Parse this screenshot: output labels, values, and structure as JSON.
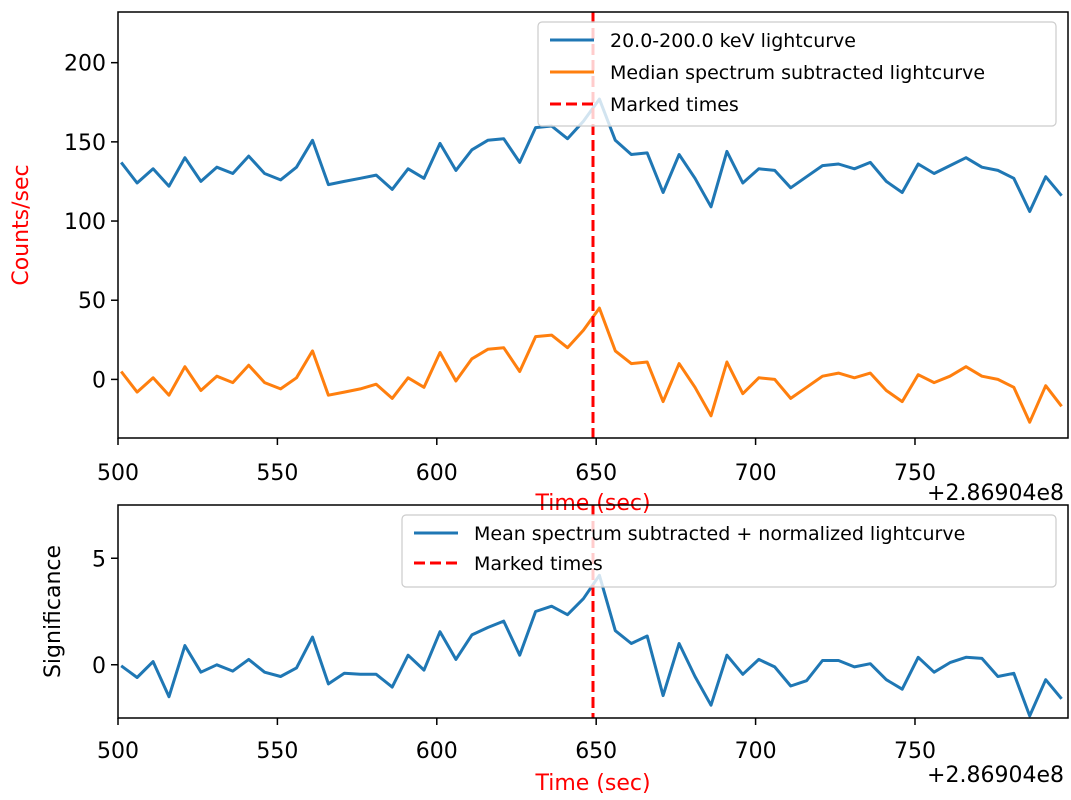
{
  "chart_data": [
    {
      "type": "line",
      "ylabel": "Counts/sec",
      "xlabel": "Time (sec)",
      "label_color": "#ff0000",
      "offset_label": "+2.86904e8",
      "xlim": [
        500,
        798
      ],
      "ylim": [
        -37,
        232
      ],
      "xticks": [
        500,
        550,
        600,
        650,
        700,
        750
      ],
      "yticks": [
        0,
        50,
        100,
        150,
        200
      ],
      "legend_position": "top-right",
      "marked_time": 649,
      "marked_label": "Marked times",
      "marked_color": "#ff0000",
      "x": [
        501,
        506,
        511,
        516,
        521,
        526,
        531,
        536,
        541,
        546,
        551,
        556,
        561,
        566,
        571,
        576,
        581,
        586,
        591,
        596,
        601,
        606,
        611,
        616,
        621,
        626,
        631,
        636,
        641,
        646,
        651,
        656,
        661,
        666,
        671,
        676,
        681,
        686,
        691,
        696,
        701,
        706,
        711,
        716,
        721,
        726,
        731,
        736,
        741,
        746,
        751,
        756,
        761,
        766,
        771,
        776,
        781,
        786,
        791,
        796
      ],
      "series": [
        {
          "name": "20.0-200.0 keV lightcurve",
          "color": "#1f77b4",
          "values": [
            137,
            124,
            133,
            122,
            140,
            125,
            134,
            130,
            141,
            130,
            126,
            134,
            151,
            123,
            125,
            127,
            129,
            120,
            133,
            127,
            149,
            132,
            145,
            151,
            152,
            137,
            159,
            160,
            152,
            163,
            177,
            151,
            142,
            143,
            118,
            142,
            127,
            109,
            144,
            124,
            133,
            132,
            121,
            128,
            135,
            136,
            133,
            137,
            125,
            118,
            136,
            130,
            135,
            140,
            134,
            132,
            127,
            106,
            128,
            116
          ]
        },
        {
          "name": "Median spectrum subtracted lightcurve",
          "color": "#ff7f0e",
          "values": [
            5,
            -8,
            1,
            -10,
            8,
            -7,
            2,
            -2,
            9,
            -2,
            -6,
            1,
            18,
            -10,
            -8,
            -6,
            -3,
            -12,
            1,
            -5,
            17,
            -1,
            13,
            19,
            20,
            5,
            27,
            28,
            20,
            31,
            45,
            18,
            10,
            11,
            -14,
            10,
            -5,
            -23,
            11,
            -9,
            1,
            0,
            -12,
            -5,
            2,
            4,
            1,
            4,
            -7,
            -14,
            3,
            -2,
            2,
            8,
            2,
            0,
            -5,
            -27,
            -4,
            -17
          ]
        }
      ]
    },
    {
      "type": "line",
      "ylabel": "Significance",
      "ylabel_color": "#000000",
      "xlabel": "Time (sec)",
      "label_color": "#ff0000",
      "offset_label": "+2.86904e8",
      "xlim": [
        500,
        798
      ],
      "ylim": [
        -2.5,
        7.5
      ],
      "xticks": [
        500,
        550,
        600,
        650,
        700,
        750
      ],
      "yticks": [
        0,
        5
      ],
      "legend_position": "top-right",
      "marked_time": 649,
      "marked_label": "Marked times",
      "marked_color": "#ff0000",
      "x": [
        501,
        506,
        511,
        516,
        521,
        526,
        531,
        536,
        541,
        546,
        551,
        556,
        561,
        566,
        571,
        576,
        581,
        586,
        591,
        596,
        601,
        606,
        611,
        616,
        621,
        626,
        631,
        636,
        641,
        646,
        651,
        656,
        661,
        666,
        671,
        676,
        681,
        686,
        691,
        696,
        701,
        706,
        711,
        716,
        721,
        726,
        731,
        736,
        741,
        746,
        751,
        756,
        761,
        766,
        771,
        776,
        781,
        786,
        791,
        796
      ],
      "series": [
        {
          "name": "Mean spectrum subtracted + normalized lightcurve",
          "color": "#1f77b4",
          "values": [
            -0.05,
            -0.6,
            0.15,
            -1.5,
            0.9,
            -0.35,
            0.0,
            -0.3,
            0.25,
            -0.35,
            -0.55,
            -0.15,
            1.3,
            -0.9,
            -0.4,
            -0.45,
            -0.45,
            -1.05,
            0.45,
            -0.25,
            1.55,
            0.25,
            1.4,
            1.75,
            2.05,
            0.45,
            2.5,
            2.75,
            2.35,
            3.1,
            4.2,
            1.6,
            1.0,
            1.35,
            -1.45,
            1.0,
            -0.55,
            -1.9,
            0.45,
            -0.45,
            0.25,
            -0.1,
            -1.0,
            -0.75,
            0.2,
            0.2,
            -0.1,
            0.05,
            -0.7,
            -1.15,
            0.35,
            -0.35,
            0.1,
            0.35,
            0.3,
            -0.55,
            -0.4,
            -2.4,
            -0.7,
            -1.6
          ]
        }
      ]
    }
  ]
}
